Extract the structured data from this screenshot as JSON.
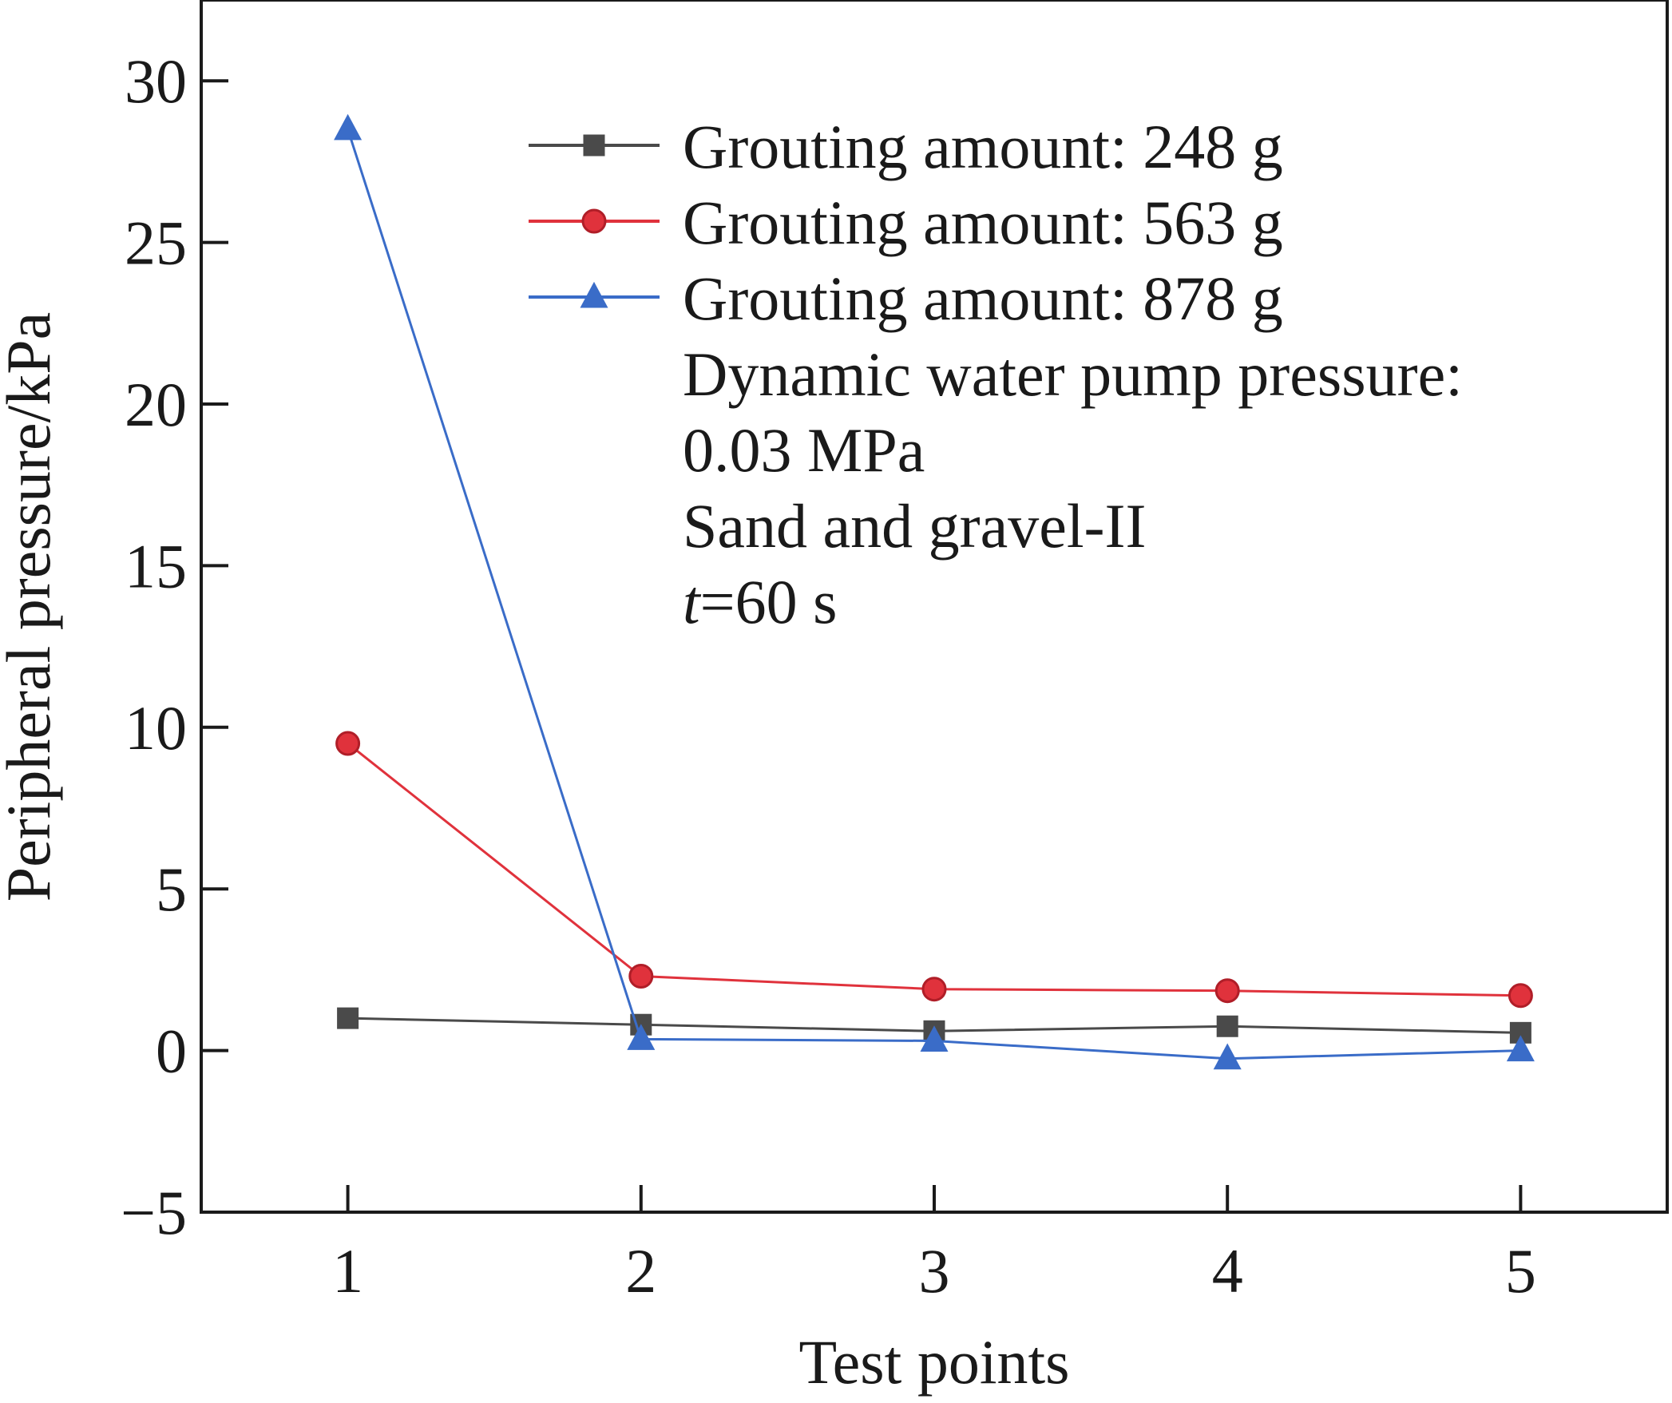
{
  "chart_data": {
    "type": "line",
    "title": "",
    "xlabel": "Test points",
    "ylabel": "Peripheral pressure/kPa",
    "x": [
      1,
      2,
      3,
      4,
      5
    ],
    "xlim": [
      0.5,
      5.5
    ],
    "ylim": [
      -5,
      32.5
    ],
    "xticks": [
      "1",
      "2",
      "3",
      "4",
      "5"
    ],
    "yticks": [
      -5,
      0,
      5,
      10,
      15,
      20,
      25,
      30
    ],
    "ytick_labels": [
      "−5",
      "0",
      "5",
      "10",
      "15",
      "20",
      "25",
      "30"
    ],
    "grid": false,
    "legend_position": "top-right",
    "series": [
      {
        "name": "Grouting amount: 248 g",
        "values": [
          1.0,
          0.8,
          0.6,
          0.75,
          0.55
        ],
        "color": "#4a4a4a",
        "marker": "square"
      },
      {
        "name": "Grouting amount: 563 g",
        "values": [
          9.5,
          2.3,
          1.9,
          1.85,
          1.7
        ],
        "color": "#e0323c",
        "marker": "circle"
      },
      {
        "name": "Grouting amount: 878 g",
        "values": [
          28.5,
          0.35,
          0.3,
          -0.25,
          0.0
        ],
        "color": "#3a6cc8",
        "marker": "triangle"
      }
    ],
    "annotations": [
      "Dynamic water pump pressure:",
      "0.03 MPa",
      "Sand and gravel-II"
    ],
    "time_annotation": {
      "var": "t",
      "rest": "=60 s"
    }
  }
}
